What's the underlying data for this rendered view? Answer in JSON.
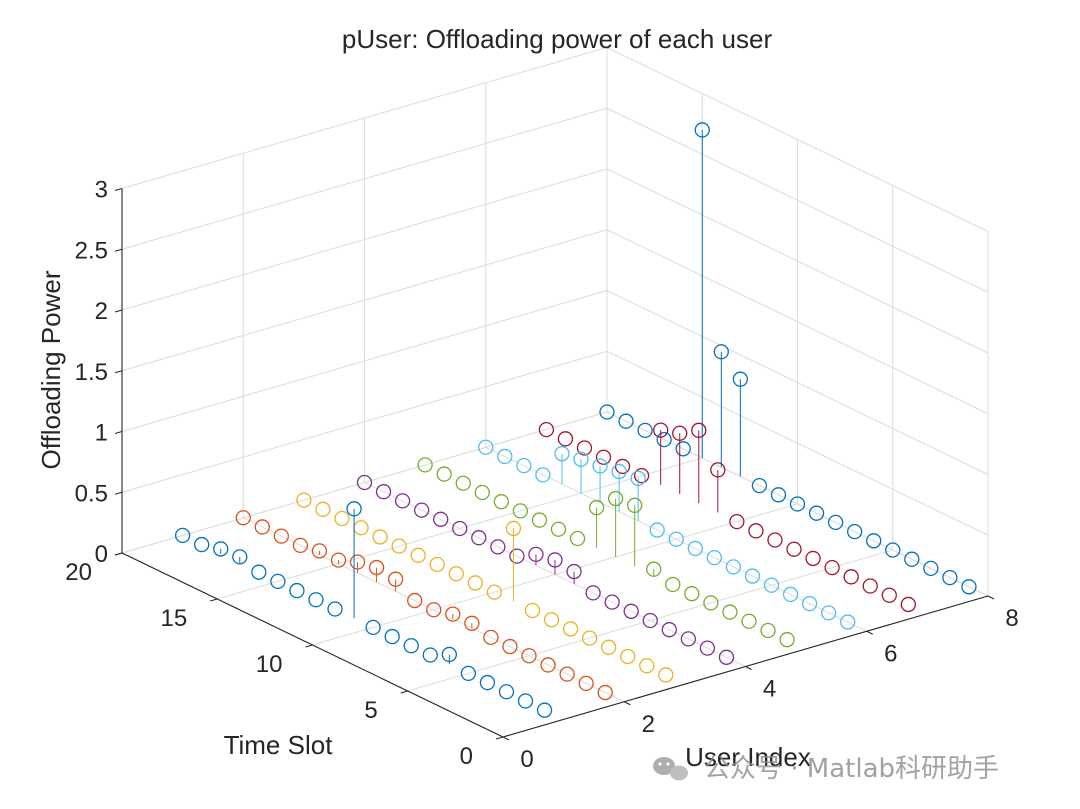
{
  "chart_data": {
    "type": "stem3",
    "title": "pUser: Offloading power of each user",
    "xlabel": "User Index",
    "ylabel": "Time Slot",
    "zlabel": "Offloading Power",
    "xlim": [
      0,
      8
    ],
    "ylim": [
      0,
      20
    ],
    "zlim": [
      0,
      3
    ],
    "xticks": [
      "0",
      "2",
      "4",
      "6",
      "8"
    ],
    "yticks": [
      "0",
      "5",
      "10",
      "15",
      "20"
    ],
    "zticks": [
      "0",
      "0.5",
      "1",
      "1.5",
      "2",
      "2.5",
      "3"
    ],
    "grid": true,
    "marker": "open circle",
    "series": [
      {
        "user": 1,
        "color": "#0072bd",
        "values": [
          0,
          0,
          0,
          0,
          0,
          0.08,
          0,
          0,
          0,
          0,
          0.9,
          0,
          0,
          0,
          0,
          0,
          0.05,
          0.04,
          0,
          0
        ]
      },
      {
        "user": 2,
        "color": "#d95319",
        "values": [
          0,
          0,
          0,
          0,
          0,
          0,
          0,
          0.04,
          0.04,
          0,
          0,
          0.1,
          0.12,
          0.09,
          0.03,
          0.03,
          0,
          0,
          0,
          0
        ]
      },
      {
        "user": 3,
        "color": "#edb120",
        "values": [
          0,
          0,
          0,
          0,
          0,
          0,
          0,
          0,
          0.6,
          0,
          0,
          0,
          0,
          0,
          0,
          0,
          0,
          0,
          0,
          0
        ]
      },
      {
        "user": 4,
        "color": "#7e2f8e",
        "values": [
          0,
          0,
          0,
          0,
          0,
          0,
          0,
          0,
          0.1,
          0.12,
          0.09,
          0,
          0,
          0,
          0,
          0,
          0,
          0,
          0,
          0
        ]
      },
      {
        "user": 5,
        "color": "#77ac30",
        "values": [
          0,
          0,
          0,
          0,
          0,
          0,
          0,
          0.05,
          0.5,
          0.48,
          0.33,
          0,
          0,
          0,
          0,
          0,
          0,
          0,
          0,
          0
        ]
      },
      {
        "user": 6,
        "color": "#4dbeee",
        "values": [
          0,
          0,
          0,
          0,
          0,
          0,
          0,
          0,
          0,
          0,
          0,
          0.35,
          0.33,
          0.3,
          0.28,
          0.25,
          0,
          0,
          0,
          0
        ]
      },
      {
        "user": 7,
        "color": "#a2142f",
        "values": [
          0,
          0,
          0,
          0,
          0,
          0,
          0,
          0,
          0,
          0,
          0.35,
          0.6,
          0.5,
          0.45,
          0,
          0,
          0,
          0,
          0,
          0
        ]
      },
      {
        "user": 8,
        "color": "#0072bd",
        "values": [
          0,
          0,
          0,
          0,
          0,
          0,
          0,
          0,
          0,
          0,
          0,
          0,
          0.8,
          0.95,
          2.7,
          0,
          0,
          0,
          0,
          0
        ]
      }
    ]
  },
  "watermark": {
    "text": "公众号 · Matlab科研助手",
    "icon": "wechat-icon"
  }
}
